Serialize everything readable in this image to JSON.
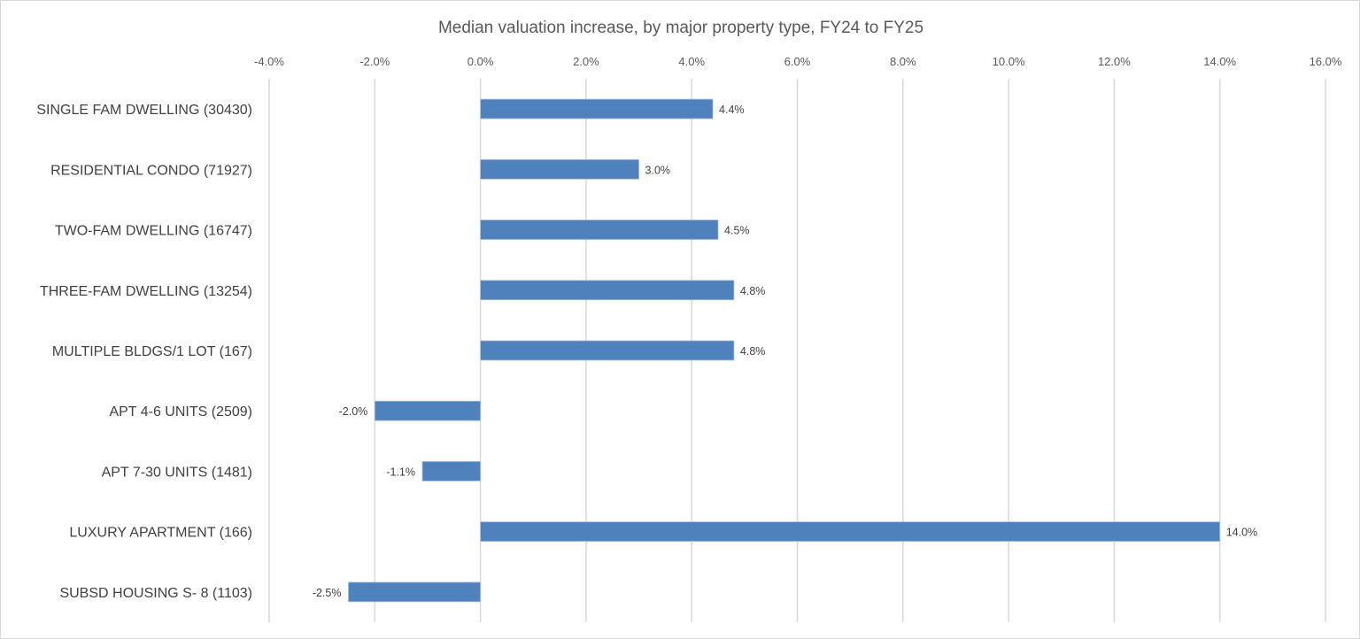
{
  "chart_data": {
    "type": "bar",
    "orientation": "horizontal",
    "title": "Median valuation increase, by major property type, FY24 to FY25",
    "xlabel": "",
    "ylabel": "",
    "xlim": [
      -4.0,
      16.0
    ],
    "x_ticks": [
      -4.0,
      -2.0,
      0.0,
      2.0,
      4.0,
      6.0,
      8.0,
      10.0,
      12.0,
      14.0,
      16.0
    ],
    "x_tick_labels": [
      "-4.0%",
      "-2.0%",
      "0.0%",
      "2.0%",
      "4.0%",
      "6.0%",
      "8.0%",
      "10.0%",
      "12.0%",
      "14.0%",
      "16.0%"
    ],
    "x_axis_position": "top",
    "grid": "vertical",
    "legend": "none",
    "bar_color": "#4f81bd",
    "categories": [
      "SINGLE FAM DWELLING (30430)",
      "RESIDENTIAL CONDO (71927)",
      "TWO-FAM DWELLING (16747)",
      "THREE-FAM DWELLING (13254)",
      "MULTIPLE BLDGS/1 LOT (167)",
      "APT 4-6 UNITS (2509)",
      "APT 7-30 UNITS (1481)",
      "LUXURY APARTMENT (166)",
      "SUBSD HOUSING S- 8 (1103)"
    ],
    "values": [
      4.4,
      3.0,
      4.5,
      4.8,
      4.8,
      -2.0,
      -1.1,
      14.0,
      -2.5
    ],
    "data_labels": [
      "4.4%",
      "3.0%",
      "4.5%",
      "4.8%",
      "4.8%",
      "-2.0%",
      "-1.1%",
      "14.0%",
      "-2.5%"
    ]
  }
}
